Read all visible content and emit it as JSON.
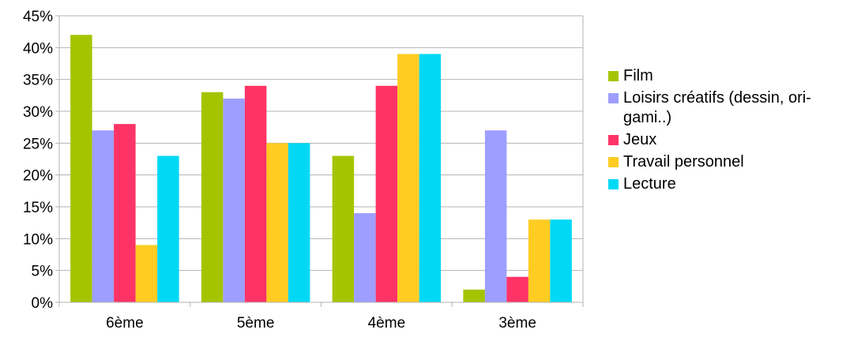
{
  "chart_data": {
    "type": "bar",
    "title": "",
    "xlabel": "",
    "ylabel": "",
    "categories": [
      "6ème",
      "5ème",
      "4ème",
      "3ème"
    ],
    "ylim": [
      0,
      45
    ],
    "yticks": [
      0,
      5,
      10,
      15,
      20,
      25,
      30,
      35,
      40,
      45
    ],
    "ytick_labels": [
      "0%",
      "5%",
      "10%",
      "15%",
      "20%",
      "25%",
      "30%",
      "35%",
      "40%",
      "45%"
    ],
    "grid": "horizontal",
    "legend_position": "right",
    "series": [
      {
        "name": "Film",
        "color": "#a5c400",
        "values": [
          42,
          33,
          23,
          2
        ]
      },
      {
        "name": "Loisirs créatifs (dessin, ori-\ngami..)",
        "color": "#9e9eff",
        "values": [
          27,
          32,
          14,
          27
        ]
      },
      {
        "name": "Jeux",
        "color": "#ff3366",
        "values": [
          28,
          34,
          34,
          4
        ]
      },
      {
        "name": "Travail personnel",
        "color": "#ffcc22",
        "values": [
          9,
          25,
          39,
          13
        ]
      },
      {
        "name": "Lecture",
        "color": "#00d9f5",
        "values": [
          23,
          25,
          39,
          13
        ]
      }
    ]
  }
}
